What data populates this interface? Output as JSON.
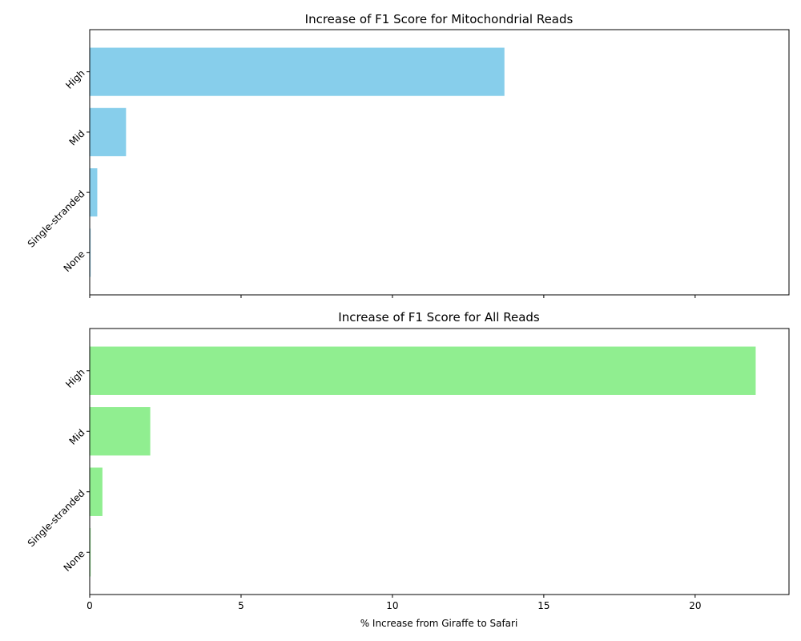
{
  "chart_data": [
    {
      "type": "bar",
      "orientation": "horizontal",
      "title": "Increase of F1 Score for Mitochondrial Reads",
      "categories": [
        "High",
        "Mid",
        "Single-stranded",
        "None"
      ],
      "values": [
        13.7,
        1.2,
        0.25,
        0.03
      ],
      "bar_color": "#87CEEB",
      "edge_color": "#000080",
      "xlabel": "",
      "ylabel": "",
      "xlim": [
        0,
        23.1
      ],
      "xticks": [
        0,
        5,
        10,
        15,
        20
      ],
      "show_xtick_labels": false,
      "grid": false
    },
    {
      "type": "bar",
      "orientation": "horizontal",
      "title": "Increase of F1 Score for All Reads",
      "categories": [
        "High",
        "Mid",
        "Single-stranded",
        "None"
      ],
      "values": [
        22.0,
        2.0,
        0.42,
        0.03
      ],
      "bar_color": "#90EE90",
      "edge_color": "#006400",
      "xlabel": "% Increase from Giraffe to Safari",
      "ylabel": "",
      "xlim": [
        0,
        23.1
      ],
      "xticks": [
        0,
        5,
        10,
        15,
        20
      ],
      "xtick_labels": [
        "0",
        "5",
        "10",
        "15",
        "20"
      ],
      "show_xtick_labels": true,
      "grid": false
    }
  ]
}
